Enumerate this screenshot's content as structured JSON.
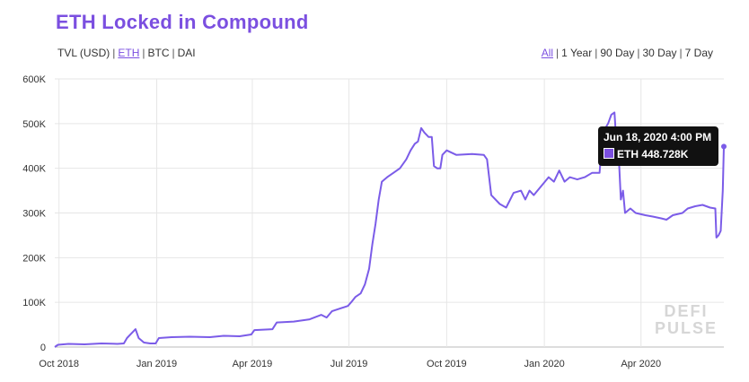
{
  "title": "ETH Locked in Compound",
  "filters": [
    {
      "label": "TVL (USD)",
      "active": false
    },
    {
      "label": "ETH",
      "active": true
    },
    {
      "label": "BTC",
      "active": false
    },
    {
      "label": "DAI",
      "active": false
    }
  ],
  "ranges": [
    {
      "label": "All",
      "active": true
    },
    {
      "label": "1 Year",
      "active": false
    },
    {
      "label": "90 Day",
      "active": false
    },
    {
      "label": "30 Day",
      "active": false
    },
    {
      "label": "7 Day",
      "active": false
    }
  ],
  "separator": "|",
  "tooltip": {
    "date": "Jun 18, 2020 4:00 PM",
    "label": "ETH 448.728K"
  },
  "watermark": [
    "DEFI",
    "PULSE"
  ],
  "colors": {
    "accent": "#7b4fe0",
    "line": "#7b5ce8",
    "grid": "#e6e6e6"
  },
  "chart_data": {
    "type": "line",
    "title": "ETH Locked in Compound",
    "xlabel": "",
    "ylabel": "",
    "x_range": [
      "2018-09-27",
      "2020-06-18"
    ],
    "ylim": [
      0,
      600000
    ],
    "grid": true,
    "x_ticks": [
      {
        "label": "Oct 2018",
        "date": "2018-10-01"
      },
      {
        "label": "Jan 2019",
        "date": "2019-01-01"
      },
      {
        "label": "Apr 2019",
        "date": "2019-04-01"
      },
      {
        "label": "Jul 2019",
        "date": "2019-07-01"
      },
      {
        "label": "Oct 2019",
        "date": "2019-10-01"
      },
      {
        "label": "Jan 2020",
        "date": "2020-01-01"
      },
      {
        "label": "Apr 2020",
        "date": "2020-04-01"
      }
    ],
    "y_ticks": [
      {
        "label": "0",
        "value": 0
      },
      {
        "label": "100K",
        "value": 100000
      },
      {
        "label": "200K",
        "value": 200000
      },
      {
        "label": "300K",
        "value": 300000
      },
      {
        "label": "400K",
        "value": 400000
      },
      {
        "label": "500K",
        "value": 500000
      },
      {
        "label": "600K",
        "value": 600000
      }
    ],
    "series": [
      {
        "name": "ETH",
        "points": [
          [
            "2018-09-27",
            0
          ],
          [
            "2018-09-30",
            5000
          ],
          [
            "2018-10-10",
            7000
          ],
          [
            "2018-10-25",
            6000
          ],
          [
            "2018-11-10",
            8000
          ],
          [
            "2018-11-25",
            7000
          ],
          [
            "2018-12-01",
            8000
          ],
          [
            "2018-12-04",
            20000
          ],
          [
            "2018-12-08",
            30000
          ],
          [
            "2018-12-12",
            40000
          ],
          [
            "2018-12-15",
            20000
          ],
          [
            "2018-12-20",
            10000
          ],
          [
            "2018-12-26",
            8000
          ],
          [
            "2018-12-31",
            8000
          ],
          [
            "2019-01-03",
            20000
          ],
          [
            "2019-01-15",
            22000
          ],
          [
            "2019-02-01",
            23000
          ],
          [
            "2019-02-20",
            22000
          ],
          [
            "2019-03-05",
            25000
          ],
          [
            "2019-03-20",
            24000
          ],
          [
            "2019-03-31",
            28000
          ],
          [
            "2019-04-03",
            38000
          ],
          [
            "2019-04-20",
            40000
          ],
          [
            "2019-04-24",
            55000
          ],
          [
            "2019-05-10",
            57000
          ],
          [
            "2019-05-25",
            62000
          ],
          [
            "2019-06-05",
            72000
          ],
          [
            "2019-06-10",
            66000
          ],
          [
            "2019-06-15",
            80000
          ],
          [
            "2019-06-30",
            92000
          ],
          [
            "2019-07-03",
            100000
          ],
          [
            "2019-07-07",
            112000
          ],
          [
            "2019-07-12",
            120000
          ],
          [
            "2019-07-16",
            140000
          ],
          [
            "2019-07-20",
            175000
          ],
          [
            "2019-07-23",
            230000
          ],
          [
            "2019-07-26",
            275000
          ],
          [
            "2019-07-29",
            330000
          ],
          [
            "2019-08-01",
            370000
          ],
          [
            "2019-08-06",
            380000
          ],
          [
            "2019-08-12",
            390000
          ],
          [
            "2019-08-18",
            400000
          ],
          [
            "2019-08-24",
            420000
          ],
          [
            "2019-08-28",
            440000
          ],
          [
            "2019-09-01",
            455000
          ],
          [
            "2019-09-04",
            460000
          ],
          [
            "2019-09-07",
            490000
          ],
          [
            "2019-09-10",
            480000
          ],
          [
            "2019-09-14",
            470000
          ],
          [
            "2019-09-17",
            470000
          ],
          [
            "2019-09-19",
            405000
          ],
          [
            "2019-09-22",
            400000
          ],
          [
            "2019-09-25",
            400000
          ],
          [
            "2019-09-27",
            430000
          ],
          [
            "2019-10-01",
            440000
          ],
          [
            "2019-10-10",
            430000
          ],
          [
            "2019-10-25",
            432000
          ],
          [
            "2019-11-05",
            430000
          ],
          [
            "2019-11-08",
            420000
          ],
          [
            "2019-11-12",
            340000
          ],
          [
            "2019-11-20",
            320000
          ],
          [
            "2019-11-26",
            312000
          ],
          [
            "2019-12-03",
            345000
          ],
          [
            "2019-12-10",
            350000
          ],
          [
            "2019-12-14",
            330000
          ],
          [
            "2019-12-18",
            350000
          ],
          [
            "2019-12-22",
            340000
          ],
          [
            "2020-01-05",
            380000
          ],
          [
            "2020-01-10",
            370000
          ],
          [
            "2020-01-15",
            395000
          ],
          [
            "2020-01-20",
            370000
          ],
          [
            "2020-01-25",
            380000
          ],
          [
            "2020-02-01",
            375000
          ],
          [
            "2020-02-08",
            380000
          ],
          [
            "2020-02-15",
            390000
          ],
          [
            "2020-02-22",
            390000
          ],
          [
            "2020-02-25",
            480000
          ],
          [
            "2020-03-01",
            500000
          ],
          [
            "2020-03-04",
            520000
          ],
          [
            "2020-03-07",
            525000
          ],
          [
            "2020-03-09",
            450000
          ],
          [
            "2020-03-11",
            430000
          ],
          [
            "2020-03-13",
            330000
          ],
          [
            "2020-03-15",
            350000
          ],
          [
            "2020-03-17",
            300000
          ],
          [
            "2020-03-22",
            310000
          ],
          [
            "2020-03-27",
            300000
          ],
          [
            "2020-04-05",
            295000
          ],
          [
            "2020-04-12",
            292000
          ],
          [
            "2020-04-20",
            288000
          ],
          [
            "2020-04-25",
            285000
          ],
          [
            "2020-05-01",
            295000
          ],
          [
            "2020-05-10",
            300000
          ],
          [
            "2020-05-15",
            310000
          ],
          [
            "2020-05-22",
            315000
          ],
          [
            "2020-05-29",
            318000
          ],
          [
            "2020-06-05",
            312000
          ],
          [
            "2020-06-10",
            310000
          ],
          [
            "2020-06-11",
            245000
          ],
          [
            "2020-06-13",
            250000
          ],
          [
            "2020-06-15",
            260000
          ],
          [
            "2020-06-17",
            350000
          ],
          [
            "2020-06-18",
            448728
          ]
        ]
      }
    ]
  }
}
